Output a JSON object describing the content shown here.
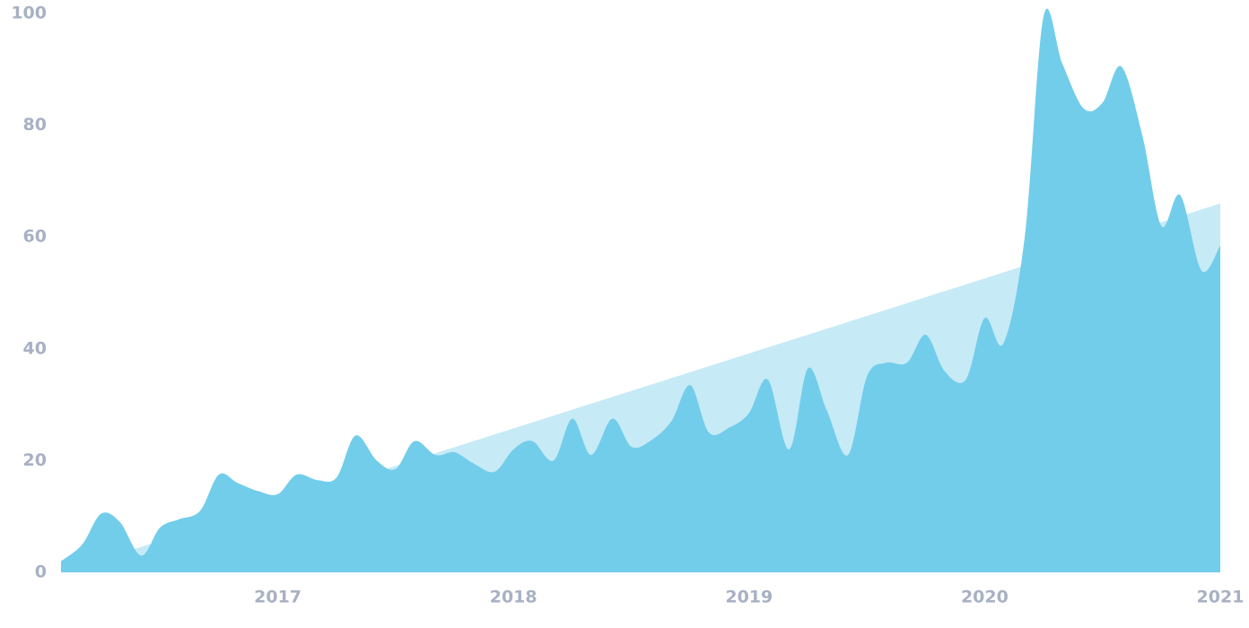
{
  "chart_data": {
    "type": "area",
    "xlim": [
      2016.08,
      2021
    ],
    "xticks": [
      2017,
      2018,
      2019,
      2020,
      2021
    ],
    "ylim": [
      0,
      100
    ],
    "yticks": [
      0,
      20,
      40,
      60,
      80,
      100
    ],
    "grid": false,
    "series": [
      {
        "color": "#c6eaf6",
        "smooth": false,
        "x": [
          2016.08,
          2021
        ],
        "values": [
          0,
          66
        ]
      },
      {
        "color": "#72cdea",
        "smooth": true,
        "x": [
          2016.08,
          2016.17,
          2016.25,
          2016.33,
          2016.42,
          2016.5,
          2016.58,
          2016.67,
          2016.75,
          2016.83,
          2016.92,
          2017,
          2017.08,
          2017.17,
          2017.25,
          2017.33,
          2017.42,
          2017.5,
          2017.58,
          2017.67,
          2017.75,
          2017.83,
          2017.92,
          2018,
          2018.08,
          2018.17,
          2018.25,
          2018.33,
          2018.42,
          2018.5,
          2018.58,
          2018.67,
          2018.75,
          2018.83,
          2018.92,
          2019,
          2019.08,
          2019.17,
          2019.25,
          2019.33,
          2019.42,
          2019.5,
          2019.58,
          2019.67,
          2019.75,
          2019.83,
          2019.92,
          2020,
          2020.08,
          2020.17,
          2020.25,
          2020.33,
          2020.42,
          2020.5,
          2020.58,
          2020.67,
          2020.75,
          2020.83,
          2020.92,
          2021
        ],
        "values": [
          2,
          5,
          10.5,
          9,
          3,
          8,
          9.5,
          11,
          17.5,
          16,
          14.5,
          14,
          17.5,
          16.5,
          17,
          24.5,
          20,
          18.5,
          23.5,
          21,
          21.5,
          19.5,
          18,
          22,
          23.5,
          20,
          27.5,
          21,
          27.5,
          22.5,
          23.5,
          27,
          33.5,
          25,
          26,
          28.5,
          34.5,
          22,
          36.5,
          29,
          21,
          35,
          37.5,
          37.5,
          42.5,
          36,
          34.5,
          45.5,
          41,
          60,
          99.5,
          91,
          83,
          84,
          90.5,
          78,
          62,
          67.5,
          54,
          58.5
        ]
      }
    ]
  }
}
